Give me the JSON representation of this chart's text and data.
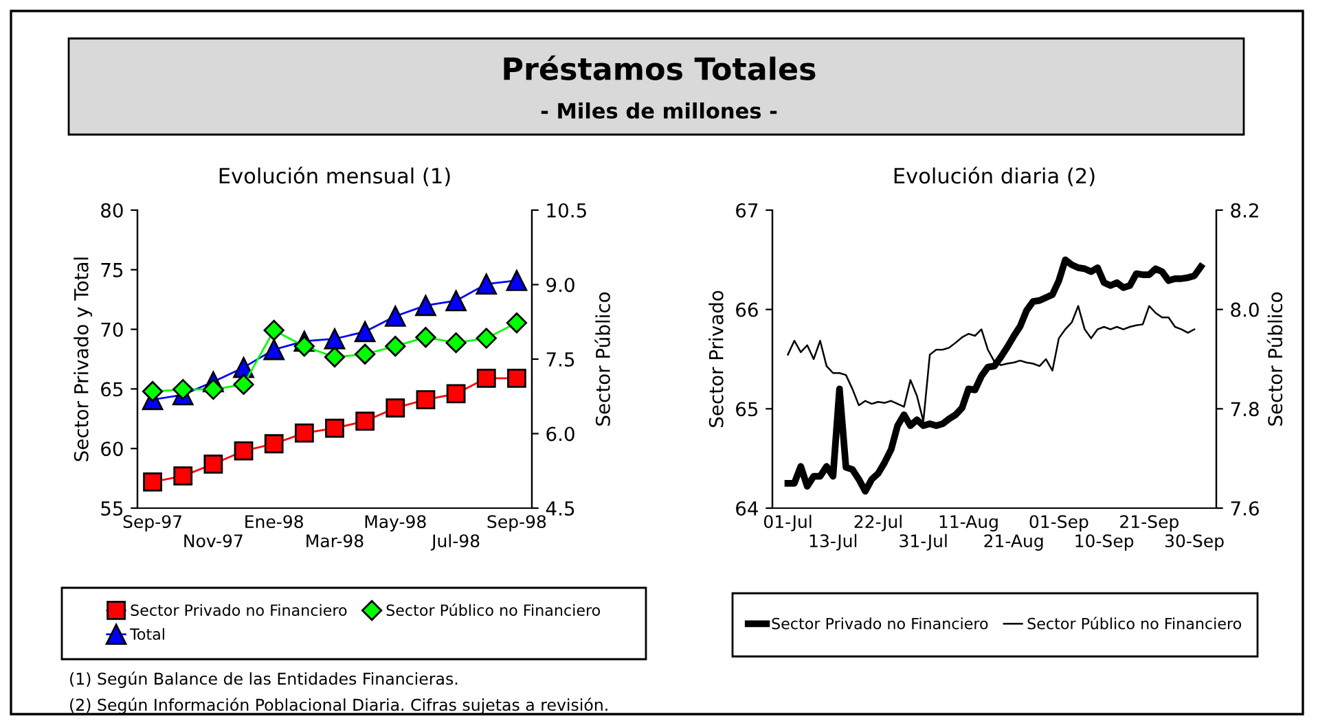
{
  "chart_data": [
    {
      "type": "line",
      "title": "Evolución mensual (1)",
      "ylabel": "Sector Privado y Total",
      "y2label": "Sector Público",
      "categories": [
        "Sep-97",
        null,
        "Nov-97",
        null,
        "Ene-98",
        null,
        "Mar-98",
        null,
        "May-98",
        null,
        "Jul-98",
        null,
        "Sep-98"
      ],
      "series": [
        {
          "name": "Sector Privado no Financiero",
          "color": "#ff0000",
          "marker": "square",
          "values": [
            57.2,
            57.7,
            58.7,
            59.8,
            60.4,
            61.3,
            61.7,
            62.3,
            63.4,
            64.1,
            64.6,
            65.9,
            65.9
          ]
        },
        {
          "name": "Sector Público no Financiero",
          "color": "#00ff00",
          "marker": "diamond",
          "axis": "y2",
          "values": [
            6.85,
            6.89,
            6.89,
            6.99,
            8.08,
            7.76,
            7.54,
            7.6,
            7.76,
            7.94,
            7.83,
            7.92,
            8.23
          ]
        },
        {
          "name": "Total",
          "color": "#0000ff",
          "marker": "triangle",
          "values": [
            64.1,
            64.5,
            65.6,
            66.8,
            68.3,
            69.0,
            69.2,
            69.8,
            71.1,
            72.0,
            72.4,
            73.8,
            74.1
          ]
        }
      ],
      "ylim": [
        55,
        80
      ],
      "yticks": [
        55,
        60,
        65,
        70,
        75,
        80
      ],
      "y2lim": [
        4.5,
        10.5
      ],
      "y2ticks": [
        {
          "value": 4.5,
          "label": "4.5"
        },
        {
          "value": 6.0,
          "label": "6.0"
        },
        {
          "value": 7.5,
          "label": "7.5"
        },
        {
          "value": 9.0,
          "label": "9.0"
        },
        {
          "value": 10.5,
          "label": "10.5"
        }
      ],
      "legend": "bottom",
      "annotations": [
        "Préstamos Totales",
        "- Miles de millones -",
        "(1) Según Balance de las Entidades Financieras."
      ]
    },
    {
      "type": "line",
      "title": "Evolución diaria (2)",
      "ylabel": "Sector Privado",
      "y2label": "Sector Público",
      "categories": [
        "01-Jul",
        null,
        null,
        null,
        null,
        null,
        null,
        "13-Jul",
        null,
        null,
        null,
        null,
        null,
        null,
        "22-Jul",
        null,
        null,
        null,
        null,
        null,
        null,
        "31-Jul",
        null,
        null,
        null,
        null,
        null,
        null,
        "11-Aug",
        null,
        null,
        null,
        null,
        null,
        null,
        "21-Aug",
        null,
        null,
        null,
        null,
        null,
        null,
        "01-Sep",
        null,
        null,
        null,
        null,
        null,
        null,
        "10-Sep",
        null,
        null,
        null,
        null,
        null,
        null,
        "21-Sep",
        null,
        null,
        null,
        null,
        null,
        null,
        "30-Sep",
        null
      ],
      "series": [
        {
          "name": "Sector Privado no Financiero",
          "color": "#000000",
          "values": [
            64.25,
            64.25,
            64.42,
            64.22,
            64.32,
            64.32,
            64.42,
            64.32,
            65.2,
            64.41,
            64.39,
            64.29,
            64.17,
            64.29,
            64.35,
            64.46,
            64.59,
            64.83,
            64.94,
            64.83,
            64.89,
            64.83,
            64.85,
            64.83,
            64.85,
            64.9,
            64.94,
            65.01,
            65.2,
            65.19,
            65.33,
            65.42,
            65.43,
            65.52,
            65.62,
            65.73,
            65.83,
            65.99,
            66.08,
            66.09,
            66.12,
            66.15,
            66.29,
            66.5,
            66.45,
            66.42,
            66.41,
            66.38,
            66.42,
            66.27,
            66.24,
            66.27,
            66.22,
            66.24,
            66.36,
            66.35,
            66.35,
            66.41,
            66.38,
            66.29,
            66.31,
            66.31,
            66.32,
            66.34,
            66.43
          ]
        },
        {
          "name": "Sector Público no Financiero",
          "color": "#000000",
          "axis": "y2",
          "values": [
            7.909,
            7.937,
            7.914,
            7.928,
            7.9,
            7.937,
            7.886,
            7.872,
            7.872,
            7.868,
            7.84,
            7.807,
            7.816,
            7.81,
            7.814,
            7.812,
            7.816,
            7.81,
            7.804,
            7.858,
            7.826,
            7.775,
            7.909,
            7.919,
            7.919,
            7.923,
            7.933,
            7.944,
            7.951,
            7.947,
            7.96,
            7.919,
            7.895,
            7.888,
            7.891,
            7.893,
            7.897,
            7.893,
            7.891,
            7.886,
            7.9,
            7.877,
            7.942,
            7.96,
            7.974,
            8.007,
            7.96,
            7.942,
            7.96,
            7.965,
            7.96,
            7.965,
            7.96,
            7.965,
            7.968,
            7.97,
            8.007,
            7.993,
            7.984,
            7.984,
            7.965,
            7.96,
            7.953,
            7.96,
            null
          ]
        }
      ],
      "ylim": [
        64,
        67
      ],
      "yticks": [
        64,
        65,
        66,
        67
      ],
      "y2lim": [
        7.6,
        8.2
      ],
      "y2ticks": [
        7.6,
        7.8,
        {
          "value": 8.0,
          "label": "8.0"
        },
        8.2
      ],
      "legend": "bottom",
      "annotations": [
        "(2) Según Información Poblacional Diaria. Cifras sujetas a revisión."
      ]
    }
  ]
}
